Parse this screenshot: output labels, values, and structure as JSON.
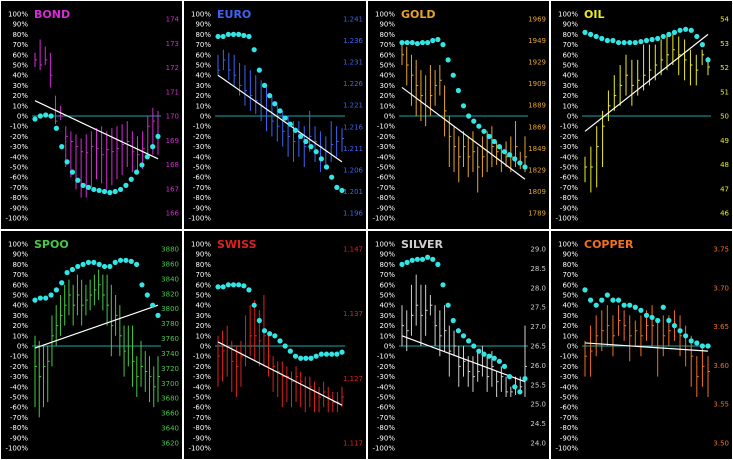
{
  "pct_ticks": [
    "100%",
    "90%",
    "80%",
    "70%",
    "60%",
    "50%",
    "40%",
    "30%",
    "20%",
    "10%",
    "0%",
    "-10%",
    "-20%",
    "-30%",
    "-40%",
    "-50%",
    "-60%",
    "-70%",
    "-80%",
    "-90%",
    "-100%"
  ],
  "colors": {
    "background": "#000000",
    "border": "#ffffff",
    "zero_line": "#1aa6a6",
    "dots": "#33e6e6",
    "trend": "#ffffff"
  },
  "chart_data": [
    {
      "type": "bar",
      "title": "BOND",
      "color": "#d62ad6",
      "price_ticks": [
        "174",
        "173",
        "172",
        "171",
        "170",
        "169",
        "168",
        "167",
        "166"
      ],
      "price_range": [
        166,
        174
      ],
      "ylim_pct": [
        -100,
        100
      ],
      "bars": [
        [
          55,
          62,
          48
        ],
        [
          50,
          75,
          45
        ],
        [
          55,
          68,
          50
        ],
        [
          40,
          62,
          28
        ],
        [
          -5,
          20,
          -8
        ],
        [
          0,
          10,
          -4
        ],
        [
          -20,
          -10,
          -50
        ],
        [
          -25,
          -15,
          -60
        ],
        [
          -30,
          -18,
          -72
        ],
        [
          -35,
          -22,
          -80
        ],
        [
          -36,
          -18,
          -80
        ],
        [
          -30,
          -15,
          -70
        ],
        [
          -32,
          -12,
          -62
        ],
        [
          -38,
          -10,
          -66
        ],
        [
          -33,
          -15,
          -72
        ],
        [
          -35,
          -12,
          -68
        ],
        [
          -32,
          -10,
          -62
        ],
        [
          -28,
          -8,
          -58
        ],
        [
          -25,
          -5,
          -50
        ],
        [
          -35,
          -15,
          -55
        ],
        [
          -38,
          -20,
          -56
        ],
        [
          -32,
          -15,
          -52
        ],
        [
          -10,
          0,
          -40
        ],
        [
          -5,
          8,
          -38
        ],
        [
          -20,
          5,
          -38
        ]
      ],
      "dots": [
        -3,
        0,
        1,
        0,
        -12,
        -30,
        -45,
        -55,
        -63,
        -68,
        -70,
        -72,
        -73,
        -74,
        -75,
        -74,
        -72,
        -68,
        -62,
        -55,
        -48,
        -40,
        -30,
        -20
      ],
      "trend_pct": [
        15,
        -42
      ]
    },
    {
      "type": "bar",
      "title": "EURO",
      "color": "#3f63f2",
      "price_ticks": [
        "1.241",
        "1.236",
        "1.231",
        "1.226",
        "1.221",
        "1.216",
        "1.211",
        "1.206",
        "1.201",
        "1.196"
      ],
      "price_range": [
        1.196,
        1.241
      ],
      "ylim_pct": [
        -100,
        100
      ],
      "bars": [
        [
          45,
          60,
          40
        ],
        [
          55,
          65,
          45
        ],
        [
          45,
          62,
          35
        ],
        [
          40,
          60,
          30
        ],
        [
          30,
          52,
          20
        ],
        [
          25,
          50,
          10
        ],
        [
          20,
          45,
          5
        ],
        [
          15,
          40,
          2
        ],
        [
          10,
          35,
          -5
        ],
        [
          5,
          30,
          -15
        ],
        [
          -5,
          20,
          -20
        ],
        [
          -10,
          10,
          -25
        ],
        [
          -15,
          5,
          -30
        ],
        [
          -20,
          0,
          -40
        ],
        [
          -25,
          -5,
          -45
        ],
        [
          -20,
          -5,
          -40
        ],
        [
          -30,
          -10,
          -50
        ],
        [
          -20,
          5,
          -35
        ],
        [
          -25,
          -10,
          -45
        ],
        [
          -30,
          -15,
          -55
        ],
        [
          -35,
          -20,
          -50
        ],
        [
          -28,
          -5,
          -45
        ],
        [
          -25,
          -10,
          -40
        ],
        [
          -22,
          -12,
          -35
        ]
      ],
      "dots": [
        78,
        78,
        80,
        80,
        80,
        79,
        78,
        65,
        45,
        30,
        20,
        12,
        5,
        -2,
        -8,
        -14,
        -20,
        -25,
        -30,
        -35,
        -42,
        -50,
        -60,
        -70,
        -73
      ],
      "trend_pct": [
        40,
        -45
      ]
    },
    {
      "type": "bar",
      "title": "GOLD",
      "color": "#e6a52a",
      "price_ticks": [
        "1969",
        "1949",
        "1929",
        "1909",
        "1889",
        "1869",
        "1849",
        "1829",
        "1809",
        "1789"
      ],
      "price_range": [
        1789,
        1969
      ],
      "ylim_pct": [
        -100,
        100
      ],
      "bars": [
        [
          60,
          70,
          50
        ],
        [
          50,
          68,
          30
        ],
        [
          40,
          60,
          10
        ],
        [
          30,
          55,
          0
        ],
        [
          20,
          45,
          -5
        ],
        [
          10,
          40,
          -10
        ],
        [
          20,
          50,
          0
        ],
        [
          30,
          45,
          10
        ],
        [
          35,
          50,
          20
        ],
        [
          5,
          30,
          -20
        ],
        [
          -20,
          0,
          -50
        ],
        [
          -30,
          -10,
          -55
        ],
        [
          -40,
          -20,
          -65
        ],
        [
          -30,
          -15,
          -50
        ],
        [
          -40,
          -20,
          -60
        ],
        [
          -35,
          -15,
          -55
        ],
        [
          -50,
          -30,
          -75
        ],
        [
          -40,
          -20,
          -60
        ],
        [
          -35,
          -15,
          -55
        ],
        [
          -30,
          -10,
          -50
        ],
        [
          -35,
          -25,
          -48
        ],
        [
          -45,
          -30,
          -55
        ],
        [
          -40,
          -25,
          -50
        ],
        [
          -40,
          -20,
          -55
        ],
        [
          -30,
          -5,
          -50
        ],
        [
          -45,
          -35,
          -52
        ],
        [
          -40,
          -20,
          -55
        ]
      ],
      "dots": [
        72,
        72,
        72,
        71,
        72,
        72,
        74,
        75,
        70,
        55,
        40,
        25,
        10,
        0,
        -5,
        -10,
        -15,
        -20,
        -25,
        -30,
        -35,
        -38,
        -42,
        -46,
        -50
      ],
      "trend_pct": [
        28,
        -62
      ]
    },
    {
      "type": "bar",
      "title": "OIL",
      "color": "#eaea2a",
      "price_ticks": [
        "54",
        "53",
        "52",
        "51",
        "50",
        "49",
        "48",
        "47",
        "46"
      ],
      "price_range": [
        46,
        54
      ],
      "ylim_pct": [
        -100,
        100
      ],
      "bars": [
        [
          -50,
          -40,
          -65
        ],
        [
          -50,
          -30,
          -75
        ],
        [
          -30,
          -10,
          -70
        ],
        [
          -10,
          5,
          -50
        ],
        [
          10,
          25,
          -5
        ],
        [
          20,
          40,
          5
        ],
        [
          30,
          50,
          10
        ],
        [
          40,
          60,
          20
        ],
        [
          30,
          55,
          10
        ],
        [
          35,
          55,
          20
        ],
        [
          40,
          70,
          25
        ],
        [
          45,
          70,
          30
        ],
        [
          50,
          70,
          35
        ],
        [
          55,
          75,
          40
        ],
        [
          60,
          80,
          45
        ],
        [
          65,
          80,
          50
        ],
        [
          60,
          78,
          40
        ],
        [
          55,
          75,
          35
        ],
        [
          50,
          65,
          30
        ],
        [
          45,
          60,
          30
        ],
        [
          60,
          65,
          50
        ],
        [
          48,
          58,
          40
        ]
      ],
      "dots": [
        82,
        80,
        78,
        76,
        74,
        74,
        72,
        72,
        72,
        72,
        73,
        74,
        75,
        76,
        78,
        80,
        82,
        84,
        85,
        84,
        78,
        70,
        55
      ],
      "trend_pct": [
        -15,
        80
      ]
    },
    {
      "type": "bar",
      "title": "SPOO",
      "color": "#48c848",
      "price_ticks": [
        "3880",
        "3860",
        "3840",
        "3820",
        "3800",
        "3780",
        "3760",
        "3740",
        "3720",
        "3700",
        "3680",
        "3660",
        "3640",
        "3620"
      ],
      "price_range": [
        3620,
        3880
      ],
      "ylim_pct": [
        -100,
        100
      ],
      "bars": [
        [
          -20,
          10,
          -60
        ],
        [
          -30,
          5,
          -70
        ],
        [
          -20,
          0,
          -60
        ],
        [
          -15,
          0,
          -55
        ],
        [
          10,
          30,
          -20
        ],
        [
          20,
          40,
          0
        ],
        [
          30,
          50,
          10
        ],
        [
          40,
          60,
          20
        ],
        [
          50,
          65,
          30
        ],
        [
          40,
          60,
          20
        ],
        [
          50,
          70,
          30
        ],
        [
          40,
          65,
          20
        ],
        [
          45,
          60,
          30
        ],
        [
          50,
          65,
          35
        ],
        [
          55,
          70,
          40
        ],
        [
          60,
          75,
          45
        ],
        [
          50,
          70,
          35
        ],
        [
          40,
          70,
          20
        ],
        [
          20,
          60,
          -10
        ],
        [
          30,
          50,
          10
        ],
        [
          10,
          40,
          -10
        ],
        [
          -5,
          20,
          -30
        ],
        [
          0,
          20,
          -20
        ],
        [
          -15,
          20,
          -40
        ],
        [
          -30,
          -10,
          -50
        ],
        [
          -20,
          5,
          -40
        ],
        [
          -25,
          -5,
          -45
        ],
        [
          -30,
          -10,
          -55
        ],
        [
          -40,
          -20,
          -60
        ],
        [
          -30,
          -10,
          -55
        ]
      ],
      "dots": [
        45,
        47,
        47,
        50,
        55,
        62,
        72,
        75,
        78,
        80,
        82,
        82,
        80,
        78,
        78,
        82,
        84,
        84,
        83,
        80,
        60,
        50,
        40,
        30
      ],
      "trend_pct": [
        -2,
        40
      ]
    },
    {
      "type": "bar",
      "title": "SWISS",
      "color": "#e02020",
      "price_ticks": [
        "1.147",
        "1.137",
        "1.127",
        "1.117"
      ],
      "price_range": [
        1.117,
        1.147
      ],
      "ylim_pct": [
        -100,
        100
      ],
      "bars": [
        [
          -10,
          10,
          -40
        ],
        [
          -5,
          15,
          -35
        ],
        [
          0,
          20,
          -30
        ],
        [
          -15,
          5,
          -45
        ],
        [
          -20,
          0,
          -50
        ],
        [
          -10,
          5,
          -40
        ],
        [
          0,
          30,
          -20
        ],
        [
          10,
          40,
          -10
        ],
        [
          10,
          45,
          -15
        ],
        [
          5,
          35,
          -20
        ],
        [
          10,
          50,
          -20
        ],
        [
          -10,
          10,
          -30
        ],
        [
          -20,
          -10,
          -45
        ],
        [
          -25,
          -15,
          -50
        ],
        [
          -30,
          -15,
          -60
        ],
        [
          -30,
          -20,
          -55
        ],
        [
          -35,
          -25,
          -60
        ],
        [
          -30,
          -20,
          -55
        ],
        [
          -35,
          -25,
          -60
        ],
        [
          -40,
          -30,
          -65
        ],
        [
          -40,
          -30,
          -60
        ],
        [
          -45,
          -35,
          -65
        ],
        [
          -50,
          -40,
          -65
        ],
        [
          -45,
          -35,
          -60
        ],
        [
          -50,
          -40,
          -65
        ],
        [
          -55,
          -45,
          -65
        ],
        [
          -55,
          -45,
          -65
        ],
        [
          -50,
          -40,
          -60
        ]
      ],
      "dots": [
        58,
        58,
        60,
        60,
        60,
        59,
        55,
        40,
        25,
        15,
        12,
        10,
        5,
        0,
        -5,
        -10,
        -12,
        -12,
        -12,
        -10,
        -8,
        -8,
        -8,
        -8,
        -6
      ],
      "trend_pct": [
        4,
        -58
      ]
    },
    {
      "type": "bar",
      "title": "SILVER",
      "color": "#cfcfcf",
      "price_ticks": [
        "29.0",
        "28.5",
        "28.0",
        "27.5",
        "27.0",
        "26.5",
        "26.0",
        "25.5",
        "25.0",
        "24.5",
        "24.0"
      ],
      "price_range": [
        24,
        29
      ],
      "ylim_pct": [
        -100,
        100
      ],
      "bars": [
        [
          20,
          40,
          0
        ],
        [
          15,
          35,
          -5
        ],
        [
          30,
          60,
          10
        ],
        [
          40,
          70,
          20
        ],
        [
          30,
          60,
          0
        ],
        [
          35,
          60,
          10
        ],
        [
          40,
          50,
          30
        ],
        [
          20,
          40,
          0
        ],
        [
          10,
          35,
          -10
        ],
        [
          15,
          40,
          -5
        ],
        [
          -5,
          20,
          -30
        ],
        [
          0,
          15,
          -10
        ],
        [
          -20,
          0,
          -40
        ],
        [
          -15,
          0,
          -30
        ],
        [
          -25,
          -10,
          -40
        ],
        [
          -30,
          -10,
          -45
        ],
        [
          -25,
          -5,
          -35
        ],
        [
          -20,
          0,
          -30
        ],
        [
          -30,
          -10,
          -45
        ],
        [
          -20,
          -5,
          -40
        ],
        [
          -35,
          -25,
          -50
        ],
        [
          -30,
          -20,
          -45
        ],
        [
          -45,
          -30,
          -50
        ],
        [
          -45,
          -40,
          -50
        ],
        [
          -40,
          -30,
          -48
        ],
        [
          -40,
          -30,
          -45
        ],
        [
          -20,
          20,
          -50
        ]
      ],
      "dots": [
        80,
        82,
        84,
        85,
        85,
        87,
        85,
        80,
        60,
        40,
        25,
        15,
        10,
        5,
        0,
        -5,
        -8,
        -10,
        -12,
        -15,
        -20,
        -30,
        -40,
        -45,
        -32
      ],
      "trend_pct": [
        10,
        -35
      ]
    },
    {
      "type": "bar",
      "title": "COPPER",
      "color": "#f07020",
      "price_ticks": [
        "3.75",
        "3.70",
        "3.65",
        "3.60",
        "3.55",
        "3.50"
      ],
      "price_range": [
        3.5,
        3.75
      ],
      "ylim_pct": [
        -100,
        100
      ],
      "bars": [
        [
          -10,
          5,
          -30
        ],
        [
          -5,
          20,
          -30
        ],
        [
          10,
          30,
          -10
        ],
        [
          15,
          35,
          -5
        ],
        [
          20,
          40,
          0
        ],
        [
          10,
          30,
          -10
        ],
        [
          25,
          40,
          10
        ],
        [
          20,
          35,
          5
        ],
        [
          10,
          30,
          -15
        ],
        [
          15,
          25,
          0
        ],
        [
          10,
          30,
          -10
        ],
        [
          20,
          35,
          5
        ],
        [
          20,
          40,
          0
        ],
        [
          0,
          25,
          -30
        ],
        [
          10,
          30,
          -10
        ],
        [
          15,
          30,
          0
        ],
        [
          20,
          35,
          5
        ],
        [
          10,
          30,
          -10
        ],
        [
          0,
          20,
          -20
        ],
        [
          -10,
          10,
          -40
        ],
        [
          -30,
          -10,
          -50
        ],
        [
          -20,
          0,
          -40
        ],
        [
          -25,
          -10,
          -50
        ]
      ],
      "dots": [
        55,
        45,
        40,
        45,
        50,
        45,
        45,
        40,
        40,
        38,
        35,
        30,
        28,
        25,
        38,
        25,
        20,
        15,
        10,
        5,
        3,
        0,
        0
      ],
      "trend_pct": [
        3,
        -5
      ]
    }
  ]
}
